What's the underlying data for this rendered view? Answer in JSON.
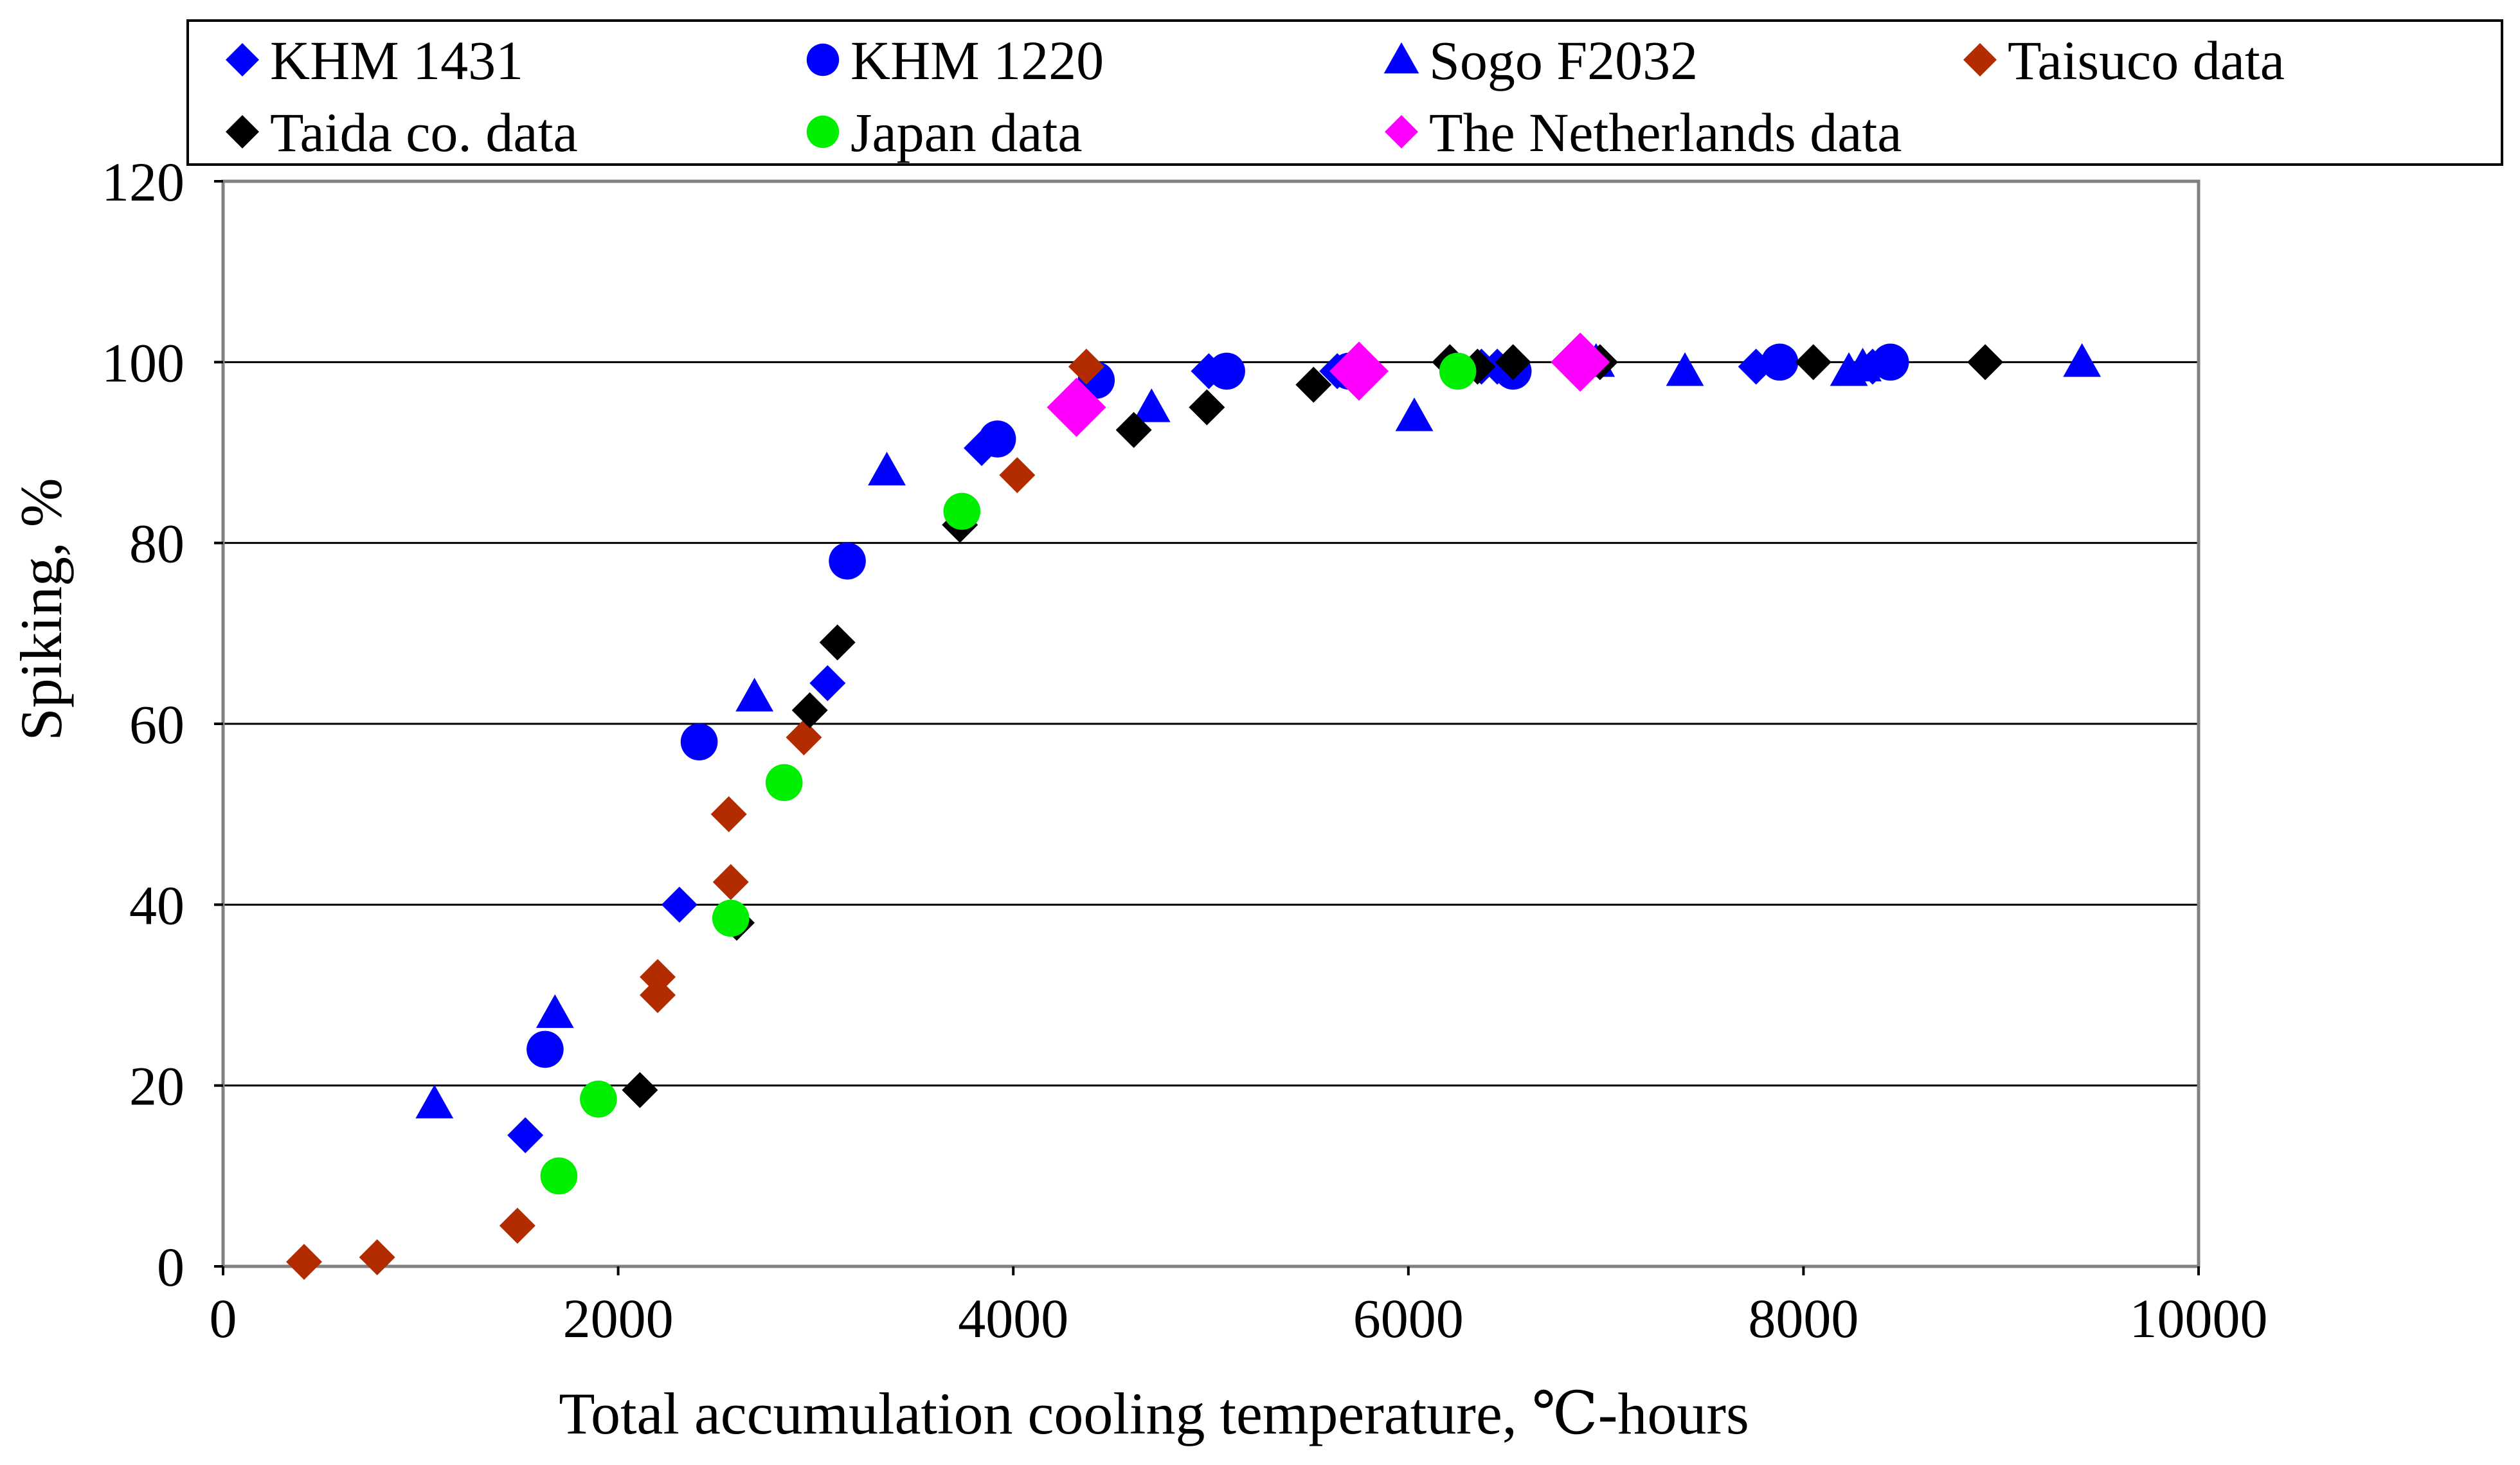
{
  "chart_data": {
    "type": "scatter",
    "title": "",
    "xlabel": "Total accumulation cooling temperature, ℃-hours",
    "ylabel": "Spiking, %",
    "xlim": [
      0,
      10000
    ],
    "ylim": [
      0,
      120
    ],
    "xticks": [
      0,
      2000,
      4000,
      6000,
      8000,
      10000
    ],
    "yticks": [
      0,
      20,
      40,
      60,
      80,
      100,
      120
    ],
    "grid": "horizontal",
    "legend_position": "top",
    "series": [
      {
        "name": "KHM 1431",
        "marker": "diamond",
        "color": "#0000ff",
        "points": [
          [
            1530,
            14.5
          ],
          [
            2310,
            40
          ],
          [
            3060,
            64.5
          ],
          [
            3840,
            90.5
          ],
          [
            4410,
            98
          ],
          [
            4990,
            99
          ],
          [
            5640,
            99
          ],
          [
            6370,
            99.5
          ],
          [
            6450,
            99.5
          ],
          [
            7760,
            99.5
          ],
          [
            8350,
            99.5
          ]
        ]
      },
      {
        "name": "KHM 1220",
        "marker": "circle",
        "color": "#0000ff",
        "points": [
          [
            1630,
            24
          ],
          [
            2410,
            58
          ],
          [
            3160,
            78
          ],
          [
            3920,
            91.5
          ],
          [
            4420,
            98
          ],
          [
            5080,
            99
          ],
          [
            5700,
            99
          ],
          [
            6530,
            99
          ],
          [
            7880,
            100
          ],
          [
            8440,
            100
          ]
        ]
      },
      {
        "name": "Sogo F2032",
        "marker": "triangle",
        "color": "#0000ff",
        "points": [
          [
            1070,
            18
          ],
          [
            1680,
            28
          ],
          [
            2690,
            63
          ],
          [
            3360,
            88
          ],
          [
            4700,
            95
          ],
          [
            6030,
            94
          ],
          [
            6950,
            100
          ],
          [
            7400,
            99
          ],
          [
            8230,
            99
          ],
          [
            8300,
            99.5
          ],
          [
            9410,
            100
          ]
        ]
      },
      {
        "name": "Taisuco data",
        "marker": "diamond",
        "color": "#b22c00",
        "points": [
          [
            410,
            0.5
          ],
          [
            780,
            1
          ],
          [
            1490,
            4.5
          ],
          [
            2200,
            32
          ],
          [
            2200,
            30
          ],
          [
            2560,
            50
          ],
          [
            2570,
            42.5
          ],
          [
            2940,
            58.5
          ],
          [
            4020,
            87.5
          ],
          [
            4370,
            99.5
          ]
        ]
      },
      {
        "name": "Taida co. data",
        "marker": "diamond",
        "color": "#000000",
        "points": [
          [
            2110,
            19.5
          ],
          [
            2600,
            38
          ],
          [
            2970,
            61.5
          ],
          [
            3110,
            69
          ],
          [
            3730,
            82
          ],
          [
            4610,
            92.5
          ],
          [
            4980,
            95
          ],
          [
            5520,
            97.5
          ],
          [
            6210,
            100
          ],
          [
            6350,
            99.5
          ],
          [
            6530,
            100
          ],
          [
            6970,
            100
          ],
          [
            8050,
            100
          ],
          [
            8920,
            100
          ]
        ]
      },
      {
        "name": "Japan data",
        "marker": "circle",
        "color": "#00ee00",
        "points": [
          [
            1700,
            10
          ],
          [
            1900,
            18.5
          ],
          [
            2570,
            38.5
          ],
          [
            2840,
            53.5
          ],
          [
            3740,
            83.5
          ],
          [
            6250,
            99
          ]
        ]
      },
      {
        "name": "The Netherlands data",
        "marker": "diamond",
        "color": "#ff00ff",
        "points": [
          [
            4320,
            95
          ],
          [
            5750,
            99
          ],
          [
            6870,
            100
          ]
        ]
      }
    ]
  }
}
